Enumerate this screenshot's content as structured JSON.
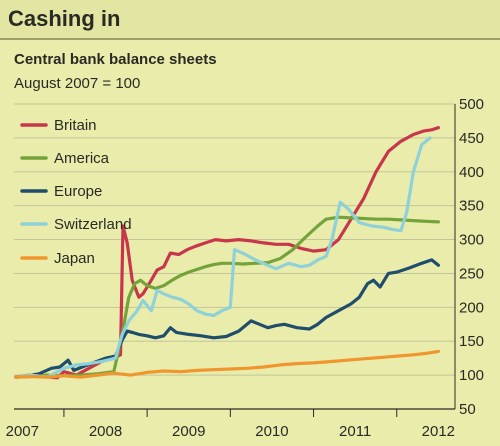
{
  "header": {
    "title": "Cashing in"
  },
  "chart_data": {
    "type": "line",
    "title": "Central bank balance sheets",
    "subtitle": "August 2007 = 100",
    "xlabel": "",
    "ylabel": "",
    "ylim": [
      50,
      500
    ],
    "y_ticks": [
      50,
      100,
      150,
      200,
      250,
      300,
      350,
      400,
      450,
      500
    ],
    "x_ticks": [
      "2007",
      "2008",
      "2009",
      "2010",
      "2011",
      "2012"
    ],
    "xlim": [
      2007.4,
      2012.7
    ],
    "grid": true,
    "legend_position": "top-left",
    "colors": {
      "background": "#e9ecab",
      "grid": "#c2c59a",
      "axis": "#2a2a24"
    },
    "series": [
      {
        "name": "Britain",
        "color": "#c8364b",
        "points": [
          [
            2007.42,
            97
          ],
          [
            2007.58,
            100
          ],
          [
            2007.75,
            98
          ],
          [
            2007.92,
            96
          ],
          [
            2008.0,
            105
          ],
          [
            2008.15,
            100
          ],
          [
            2008.3,
            110
          ],
          [
            2008.45,
            120
          ],
          [
            2008.6,
            125
          ],
          [
            2008.68,
            130
          ],
          [
            2008.71,
            320
          ],
          [
            2008.76,
            295
          ],
          [
            2008.82,
            240
          ],
          [
            2008.9,
            215
          ],
          [
            2008.95,
            220
          ],
          [
            2009.05,
            240
          ],
          [
            2009.12,
            255
          ],
          [
            2009.2,
            260
          ],
          [
            2009.28,
            280
          ],
          [
            2009.38,
            278
          ],
          [
            2009.48,
            285
          ],
          [
            2009.58,
            290
          ],
          [
            2009.7,
            295
          ],
          [
            2009.82,
            300
          ],
          [
            2009.95,
            298
          ],
          [
            2010.1,
            300
          ],
          [
            2010.25,
            298
          ],
          [
            2010.4,
            295
          ],
          [
            2010.55,
            293
          ],
          [
            2010.7,
            293
          ],
          [
            2010.85,
            287
          ],
          [
            2011.0,
            283
          ],
          [
            2011.15,
            285
          ],
          [
            2011.3,
            300
          ],
          [
            2011.45,
            330
          ],
          [
            2011.6,
            360
          ],
          [
            2011.75,
            400
          ],
          [
            2011.9,
            430
          ],
          [
            2012.05,
            445
          ],
          [
            2012.2,
            455
          ],
          [
            2012.32,
            460
          ],
          [
            2012.42,
            462
          ],
          [
            2012.5,
            465
          ]
        ]
      },
      {
        "name": "America",
        "color": "#74a33a",
        "points": [
          [
            2007.42,
            97
          ],
          [
            2007.6,
            98
          ],
          [
            2007.8,
            100
          ],
          [
            2008.0,
            99
          ],
          [
            2008.2,
            100
          ],
          [
            2008.4,
            102
          ],
          [
            2008.6,
            105
          ],
          [
            2008.7,
            160
          ],
          [
            2008.78,
            215
          ],
          [
            2008.85,
            235
          ],
          [
            2008.92,
            240
          ],
          [
            2009.0,
            232
          ],
          [
            2009.1,
            228
          ],
          [
            2009.2,
            232
          ],
          [
            2009.3,
            240
          ],
          [
            2009.4,
            247
          ],
          [
            2009.5,
            252
          ],
          [
            2009.6,
            256
          ],
          [
            2009.7,
            260
          ],
          [
            2009.8,
            263
          ],
          [
            2009.9,
            265
          ],
          [
            2010.0,
            265
          ],
          [
            2010.15,
            264
          ],
          [
            2010.3,
            265
          ],
          [
            2010.45,
            266
          ],
          [
            2010.6,
            272
          ],
          [
            2010.75,
            285
          ],
          [
            2010.9,
            303
          ],
          [
            2011.05,
            320
          ],
          [
            2011.15,
            330
          ],
          [
            2011.3,
            333
          ],
          [
            2011.45,
            332
          ],
          [
            2011.6,
            331
          ],
          [
            2011.75,
            330
          ],
          [
            2011.9,
            330
          ],
          [
            2012.05,
            329
          ],
          [
            2012.2,
            328
          ],
          [
            2012.35,
            327
          ],
          [
            2012.5,
            326
          ]
        ]
      },
      {
        "name": "Europe",
        "color": "#1f4d6b",
        "points": [
          [
            2007.42,
            97
          ],
          [
            2007.55,
            99
          ],
          [
            2007.7,
            102
          ],
          [
            2007.85,
            110
          ],
          [
            2007.95,
            112
          ],
          [
            2008.05,
            122
          ],
          [
            2008.12,
            107
          ],
          [
            2008.22,
            112
          ],
          [
            2008.35,
            118
          ],
          [
            2008.5,
            125
          ],
          [
            2008.62,
            128
          ],
          [
            2008.7,
            152
          ],
          [
            2008.76,
            165
          ],
          [
            2008.82,
            163
          ],
          [
            2008.9,
            160
          ],
          [
            2009.0,
            158
          ],
          [
            2009.1,
            155
          ],
          [
            2009.2,
            158
          ],
          [
            2009.28,
            170
          ],
          [
            2009.35,
            163
          ],
          [
            2009.5,
            160
          ],
          [
            2009.65,
            158
          ],
          [
            2009.8,
            155
          ],
          [
            2009.95,
            157
          ],
          [
            2010.1,
            165
          ],
          [
            2010.25,
            180
          ],
          [
            2010.35,
            175
          ],
          [
            2010.45,
            170
          ],
          [
            2010.55,
            173
          ],
          [
            2010.65,
            175
          ],
          [
            2010.8,
            170
          ],
          [
            2010.95,
            168
          ],
          [
            2011.05,
            175
          ],
          [
            2011.15,
            185
          ],
          [
            2011.3,
            195
          ],
          [
            2011.45,
            205
          ],
          [
            2011.55,
            215
          ],
          [
            2011.65,
            235
          ],
          [
            2011.72,
            240
          ],
          [
            2011.8,
            230
          ],
          [
            2011.9,
            250
          ],
          [
            2012.0,
            252
          ],
          [
            2012.15,
            258
          ],
          [
            2012.3,
            265
          ],
          [
            2012.42,
            270
          ],
          [
            2012.5,
            262
          ]
        ]
      },
      {
        "name": "Switzerland",
        "color": "#8ed1d8",
        "points": [
          [
            2007.42,
            97
          ],
          [
            2007.6,
            100
          ],
          [
            2007.8,
            97
          ],
          [
            2008.0,
            110
          ],
          [
            2008.15,
            115
          ],
          [
            2008.3,
            117
          ],
          [
            2008.45,
            120
          ],
          [
            2008.62,
            125
          ],
          [
            2008.7,
            160
          ],
          [
            2008.78,
            180
          ],
          [
            2008.88,
            195
          ],
          [
            2008.95,
            210
          ],
          [
            2009.05,
            195
          ],
          [
            2009.12,
            225
          ],
          [
            2009.2,
            220
          ],
          [
            2009.3,
            215
          ],
          [
            2009.4,
            212
          ],
          [
            2009.5,
            205
          ],
          [
            2009.6,
            195
          ],
          [
            2009.7,
            190
          ],
          [
            2009.8,
            188
          ],
          [
            2009.9,
            195
          ],
          [
            2010.0,
            200
          ],
          [
            2010.05,
            285
          ],
          [
            2010.15,
            280
          ],
          [
            2010.3,
            270
          ],
          [
            2010.45,
            262
          ],
          [
            2010.55,
            257
          ],
          [
            2010.7,
            265
          ],
          [
            2010.85,
            260
          ],
          [
            2010.95,
            262
          ],
          [
            2011.05,
            270
          ],
          [
            2011.15,
            275
          ],
          [
            2011.22,
            300
          ],
          [
            2011.32,
            355
          ],
          [
            2011.42,
            345
          ],
          [
            2011.55,
            325
          ],
          [
            2011.7,
            320
          ],
          [
            2011.85,
            318
          ],
          [
            2011.95,
            315
          ],
          [
            2012.05,
            313
          ],
          [
            2012.12,
            340
          ],
          [
            2012.2,
            400
          ],
          [
            2012.3,
            440
          ],
          [
            2012.4,
            450
          ]
        ]
      },
      {
        "name": "Japan",
        "color": "#f0962e",
        "points": [
          [
            2007.42,
            97
          ],
          [
            2007.6,
            98
          ],
          [
            2007.8,
            97
          ],
          [
            2008.0,
            99
          ],
          [
            2008.2,
            97
          ],
          [
            2008.4,
            100
          ],
          [
            2008.6,
            103
          ],
          [
            2008.8,
            100
          ],
          [
            2009.0,
            104
          ],
          [
            2009.2,
            106
          ],
          [
            2009.4,
            105
          ],
          [
            2009.6,
            107
          ],
          [
            2009.8,
            108
          ],
          [
            2010.0,
            109
          ],
          [
            2010.2,
            110
          ],
          [
            2010.4,
            112
          ],
          [
            2010.6,
            115
          ],
          [
            2010.8,
            117
          ],
          [
            2011.0,
            118
          ],
          [
            2011.2,
            120
          ],
          [
            2011.4,
            122
          ],
          [
            2011.6,
            124
          ],
          [
            2011.8,
            126
          ],
          [
            2012.0,
            128
          ],
          [
            2012.2,
            130
          ],
          [
            2012.35,
            132
          ],
          [
            2012.5,
            135
          ]
        ]
      }
    ]
  }
}
